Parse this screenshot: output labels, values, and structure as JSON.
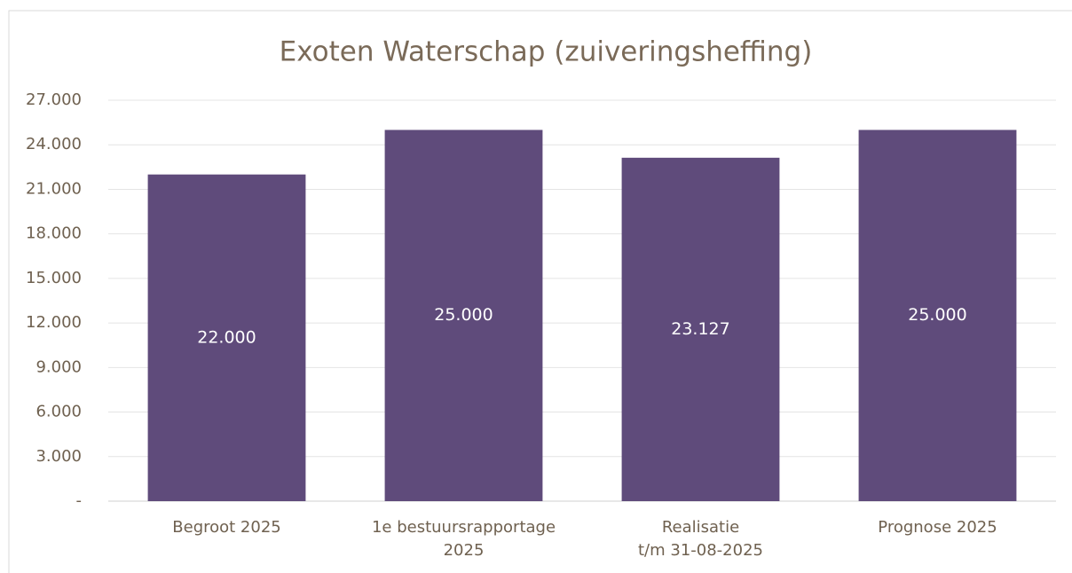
{
  "chart_data": {
    "type": "bar",
    "title": "Exoten Waterschap (zuiveringsheffing)",
    "categories": [
      "Begroot 2025",
      "1e bestuursrapportage\n2025",
      "Realisatie\nt/m 31-08-2025",
      "Prognose 2025"
    ],
    "values": [
      22000,
      25000,
      23127,
      25000
    ],
    "value_labels": [
      "22.000",
      "25.000",
      "23.127",
      "25.000"
    ],
    "color": "#5f4b7b",
    "ylim": [
      0,
      27000
    ],
    "yticks": [
      {
        "value": 0,
        "label": "-"
      },
      {
        "value": 3000,
        "label": "3.000"
      },
      {
        "value": 6000,
        "label": "6.000"
      },
      {
        "value": 9000,
        "label": "9.000"
      },
      {
        "value": 12000,
        "label": "12.000"
      },
      {
        "value": 15000,
        "label": "15.000"
      },
      {
        "value": 18000,
        "label": "18.000"
      },
      {
        "value": 21000,
        "label": "21.000"
      },
      {
        "value": 24000,
        "label": "24.000"
      },
      {
        "value": 27000,
        "label": "27.000"
      }
    ],
    "grid": true
  }
}
